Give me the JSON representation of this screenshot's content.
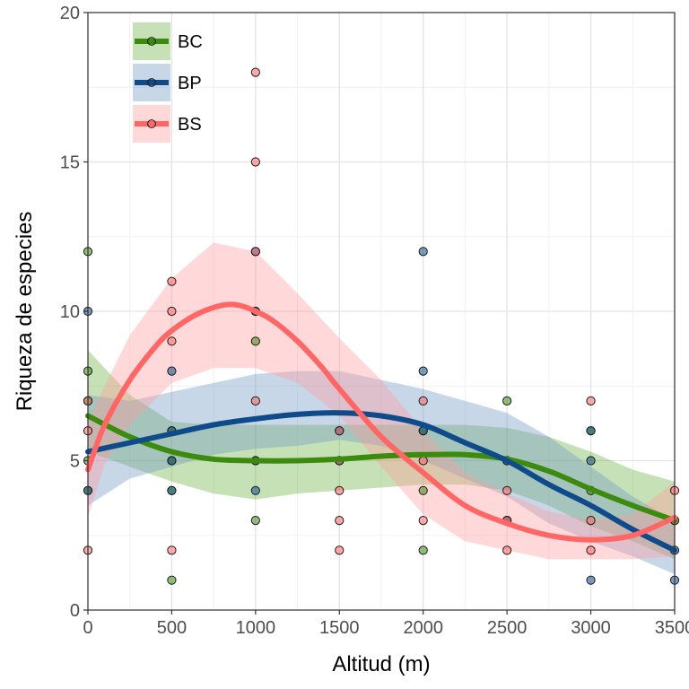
{
  "chart_data": {
    "type": "scatter",
    "title": "",
    "xlabel": "Altitud (m)",
    "ylabel": "Riqueza de especies",
    "xlim": [
      0,
      3500
    ],
    "ylim": [
      0,
      20
    ],
    "x_ticks": [
      0,
      500,
      1000,
      1500,
      2000,
      2500,
      3000,
      3500
    ],
    "y_ticks": [
      0,
      5,
      10,
      15,
      20
    ],
    "grid": true,
    "legend_position": "top-left",
    "series": [
      {
        "name": "BC",
        "color": "#3c8a0e",
        "band_color": "#6bb13f",
        "points": [
          [
            0,
            12
          ],
          [
            0,
            8
          ],
          [
            0,
            7
          ],
          [
            0,
            5
          ],
          [
            0,
            4
          ],
          [
            500,
            6
          ],
          [
            500,
            5
          ],
          [
            500,
            4
          ],
          [
            500,
            1
          ],
          [
            1000,
            10
          ],
          [
            1000,
            9
          ],
          [
            1000,
            5
          ],
          [
            1000,
            3
          ],
          [
            1500,
            5
          ],
          [
            2000,
            6
          ],
          [
            2000,
            4
          ],
          [
            2000,
            2
          ],
          [
            2500,
            7
          ],
          [
            2500,
            5
          ],
          [
            2500,
            3
          ],
          [
            3000,
            6
          ],
          [
            3000,
            4
          ],
          [
            3500,
            3
          ]
        ],
        "fit": [
          [
            0,
            6.5
          ],
          [
            250,
            5.8
          ],
          [
            500,
            5.3
          ],
          [
            750,
            5.05
          ],
          [
            1000,
            5.0
          ],
          [
            1250,
            5.0
          ],
          [
            1500,
            5.05
          ],
          [
            1750,
            5.15
          ],
          [
            2000,
            5.2
          ],
          [
            2250,
            5.2
          ],
          [
            2500,
            5.05
          ],
          [
            2750,
            4.65
          ],
          [
            3000,
            4.05
          ],
          [
            3250,
            3.5
          ],
          [
            3500,
            3.0
          ]
        ],
        "band": [
          [
            0,
            5.3,
            8.7
          ],
          [
            250,
            4.8,
            7.2
          ],
          [
            500,
            4.3,
            6.3
          ],
          [
            750,
            3.9,
            6.2
          ],
          [
            1000,
            3.7,
            6.2
          ],
          [
            1250,
            3.9,
            6.2
          ],
          [
            1500,
            4.0,
            6.2
          ],
          [
            1750,
            4.1,
            6.2
          ],
          [
            2000,
            4.2,
            6.2
          ],
          [
            2250,
            4.2,
            6.2
          ],
          [
            2500,
            4.0,
            6.1
          ],
          [
            2750,
            3.5,
            5.8
          ],
          [
            3000,
            2.8,
            5.3
          ],
          [
            3250,
            2.3,
            4.7
          ],
          [
            3500,
            1.7,
            4.3
          ]
        ]
      },
      {
        "name": "BP",
        "color": "#0f4a8a",
        "band_color": "#6f96c3",
        "points": [
          [
            0,
            10
          ],
          [
            0,
            4
          ],
          [
            500,
            8
          ],
          [
            500,
            6
          ],
          [
            500,
            5
          ],
          [
            500,
            4
          ],
          [
            1000,
            12
          ],
          [
            1000,
            10
          ],
          [
            1000,
            5
          ],
          [
            1000,
            4
          ],
          [
            1500,
            6
          ],
          [
            1500,
            5
          ],
          [
            2000,
            12
          ],
          [
            2000,
            8
          ],
          [
            2000,
            6
          ],
          [
            2500,
            5
          ],
          [
            2500,
            3
          ],
          [
            3000,
            6
          ],
          [
            3000,
            5
          ],
          [
            3000,
            1
          ],
          [
            3500,
            2
          ],
          [
            3500,
            1
          ]
        ],
        "fit": [
          [
            0,
            5.3
          ],
          [
            250,
            5.6
          ],
          [
            500,
            5.9
          ],
          [
            750,
            6.2
          ],
          [
            1000,
            6.4
          ],
          [
            1250,
            6.55
          ],
          [
            1500,
            6.6
          ],
          [
            1750,
            6.5
          ],
          [
            2000,
            6.2
          ],
          [
            2250,
            5.6
          ],
          [
            2500,
            5.0
          ],
          [
            2750,
            4.2
          ],
          [
            3000,
            3.5
          ],
          [
            3250,
            2.7
          ],
          [
            3500,
            2.0
          ]
        ],
        "band": [
          [
            0,
            3.5,
            7.2
          ],
          [
            250,
            4.4,
            7.0
          ],
          [
            500,
            4.8,
            7.3
          ],
          [
            750,
            5.2,
            7.6
          ],
          [
            1000,
            5.4,
            7.9
          ],
          [
            1250,
            5.5,
            8.0
          ],
          [
            1500,
            5.7,
            8.0
          ],
          [
            1750,
            5.5,
            7.7
          ],
          [
            2000,
            5.0,
            7.4
          ],
          [
            2250,
            4.4,
            7.0
          ],
          [
            2500,
            3.8,
            6.6
          ],
          [
            2750,
            2.9,
            5.8
          ],
          [
            3000,
            2.3,
            4.8
          ],
          [
            3250,
            1.8,
            3.8
          ],
          [
            3500,
            1.2,
            3.0
          ]
        ]
      },
      {
        "name": "BS",
        "color": "#ff6666",
        "band_color": "#ff9a9a",
        "points": [
          [
            0,
            7
          ],
          [
            0,
            6
          ],
          [
            0,
            2
          ],
          [
            500,
            11
          ],
          [
            500,
            10
          ],
          [
            500,
            9
          ],
          [
            500,
            2
          ],
          [
            1000,
            18
          ],
          [
            1000,
            15
          ],
          [
            1000,
            12
          ],
          [
            1000,
            7
          ],
          [
            1500,
            6
          ],
          [
            1500,
            5
          ],
          [
            1500,
            4
          ],
          [
            1500,
            3
          ],
          [
            1500,
            2
          ],
          [
            2000,
            7
          ],
          [
            2000,
            5
          ],
          [
            2000,
            3
          ],
          [
            2500,
            4
          ],
          [
            2500,
            3
          ],
          [
            2500,
            2
          ],
          [
            3000,
            7
          ],
          [
            3000,
            3
          ],
          [
            3000,
            2
          ],
          [
            3500,
            4
          ],
          [
            3500,
            3
          ]
        ],
        "fit": [
          [
            0,
            4.7
          ],
          [
            100,
            6.2
          ],
          [
            250,
            7.7
          ],
          [
            400,
            8.8
          ],
          [
            500,
            9.35
          ],
          [
            650,
            9.9
          ],
          [
            800,
            10.2
          ],
          [
            900,
            10.2
          ],
          [
            1000,
            10.0
          ],
          [
            1100,
            9.7
          ],
          [
            1250,
            9.0
          ],
          [
            1400,
            8.1
          ],
          [
            1500,
            7.4
          ],
          [
            1750,
            5.8
          ],
          [
            2000,
            4.6
          ],
          [
            2250,
            3.5
          ],
          [
            2500,
            2.9
          ],
          [
            2750,
            2.5
          ],
          [
            3000,
            2.35
          ],
          [
            3250,
            2.5
          ],
          [
            3500,
            3.1
          ]
        ],
        "band": [
          [
            0,
            3.1,
            6.3
          ],
          [
            100,
            4.9,
            7.5
          ],
          [
            250,
            6.2,
            9.2
          ],
          [
            500,
            7.6,
            11.1
          ],
          [
            750,
            8.1,
            12.3
          ],
          [
            1000,
            8.1,
            12.0
          ],
          [
            1250,
            7.6,
            10.6
          ],
          [
            1500,
            6.5,
            9.1
          ],
          [
            1750,
            4.8,
            7.7
          ],
          [
            2000,
            3.2,
            6.0
          ],
          [
            2250,
            2.3,
            4.6
          ],
          [
            2500,
            2.0,
            3.9
          ],
          [
            2750,
            1.7,
            3.3
          ],
          [
            3000,
            1.7,
            3.0
          ],
          [
            3250,
            1.7,
            3.2
          ],
          [
            3500,
            1.8,
            4.3
          ]
        ]
      }
    ]
  }
}
